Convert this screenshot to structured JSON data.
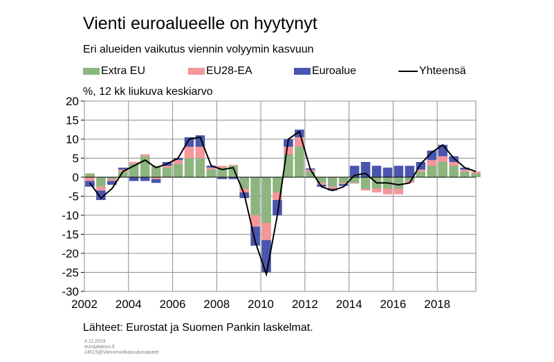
{
  "title": "Vienti euroalueelle on hyytynyt",
  "subtitle": "Eri alueiden vaikutus viennin volyymin kasvuun",
  "unit_label": "%, 12 kk liukuva keskiarvo",
  "source": "Lähteet: Eurostat ja Suomen Pankin laskelmat.",
  "meta": [
    "4.11.2019",
    "eurojatalous.fi",
    "24515@Vienninvolkasvukonalueet"
  ],
  "colors": {
    "extra_eu": "#8db580",
    "eu28_ea": "#f4969a",
    "euroalue": "#4a56ad",
    "yhteensa": "#000000"
  },
  "legend": [
    {
      "label": "Extra EU",
      "kind": "bar",
      "color": "#8db580"
    },
    {
      "label": "EU28-EA",
      "kind": "bar",
      "color": "#f4969a"
    },
    {
      "label": "Euroalue",
      "kind": "bar",
      "color": "#4a56ad"
    },
    {
      "label": "Yhteensä",
      "kind": "line",
      "color": "#000000"
    }
  ],
  "chart_data": {
    "type": "bar",
    "stacked": true,
    "title": "Vienti euroalueelle on hyytynyt",
    "ylabel": "%, 12 kk liukuva keskiarvo",
    "ylim": [
      -30,
      20
    ],
    "yticks": [
      20,
      15,
      10,
      5,
      0,
      -5,
      -10,
      -15,
      -20,
      -25,
      -30
    ],
    "xlim": [
      2002,
      2019.75
    ],
    "xticks": [
      2002,
      2004,
      2006,
      2008,
      2010,
      2012,
      2014,
      2016,
      2018
    ],
    "grid": true,
    "legend_position": "top",
    "x": [
      2002.0,
      2002.5,
      2003.0,
      2003.5,
      2004.0,
      2004.5,
      2005.0,
      2005.5,
      2006.0,
      2006.5,
      2007.0,
      2007.5,
      2008.0,
      2008.5,
      2009.0,
      2009.5,
      2010.0,
      2010.5,
      2011.0,
      2011.5,
      2012.0,
      2012.5,
      2013.0,
      2013.5,
      2014.0,
      2014.5,
      2015.0,
      2015.5,
      2016.0,
      2016.5,
      2017.0,
      2017.5,
      2018.0,
      2018.5,
      2019.0,
      2019.5
    ],
    "series": [
      {
        "name": "Extra EU",
        "kind": "bar",
        "values": [
          1.0,
          -2.5,
          -0.5,
          1.5,
          3.5,
          5.5,
          3.0,
          2.5,
          3.5,
          5.0,
          5.0,
          2.0,
          2.5,
          3.0,
          -3.0,
          -10.0,
          -12.0,
          -4.0,
          6.0,
          8.0,
          1.5,
          -1.5,
          -2.5,
          -1.5,
          -1.5,
          -3.0,
          -3.0,
          -3.0,
          -3.0,
          -1.0,
          1.5,
          3.0,
          4.0,
          3.0,
          1.5,
          1.0
        ]
      },
      {
        "name": "EU28-EA",
        "kind": "bar",
        "values": [
          -1.0,
          -1.0,
          -0.5,
          0.5,
          0.5,
          0.5,
          -0.5,
          0.5,
          1.0,
          3.0,
          3.0,
          0.5,
          0.5,
          0.2,
          -1.0,
          -3.0,
          -4.5,
          -2.0,
          2.0,
          2.5,
          0.5,
          -0.5,
          -0.5,
          -0.3,
          -0.2,
          -0.5,
          -1.0,
          -1.5,
          -1.5,
          -0.5,
          0.5,
          1.5,
          1.5,
          1.0,
          0.5,
          0.5
        ]
      },
      {
        "name": "Euroalue",
        "kind": "bar",
        "values": [
          -1.5,
          -2.5,
          -1.0,
          0.5,
          -1.0,
          -1.0,
          -1.0,
          1.0,
          0.5,
          2.5,
          3.0,
          0.5,
          -0.5,
          -0.5,
          -1.5,
          -5.0,
          -8.5,
          -4.0,
          2.0,
          2.0,
          0.3,
          -0.5,
          -0.5,
          -0.5,
          3.0,
          4.0,
          3.0,
          2.5,
          3.0,
          3.0,
          2.0,
          2.5,
          3.0,
          1.5,
          0.5,
          0.0
        ]
      },
      {
        "name": "Yhteensä",
        "kind": "line",
        "values": [
          -1.5,
          -5.5,
          -3.0,
          1.5,
          3.0,
          4.5,
          2.5,
          3.5,
          5.0,
          10.0,
          10.5,
          3.0,
          2.0,
          2.5,
          -4.5,
          -17.0,
          -25.5,
          -10.0,
          10.0,
          12.0,
          2.0,
          -2.5,
          -3.5,
          -2.5,
          0.5,
          1.0,
          -1.5,
          -1.5,
          -2.0,
          -1.5,
          3.5,
          6.5,
          8.5,
          5.0,
          2.5,
          1.5
        ]
      }
    ]
  }
}
